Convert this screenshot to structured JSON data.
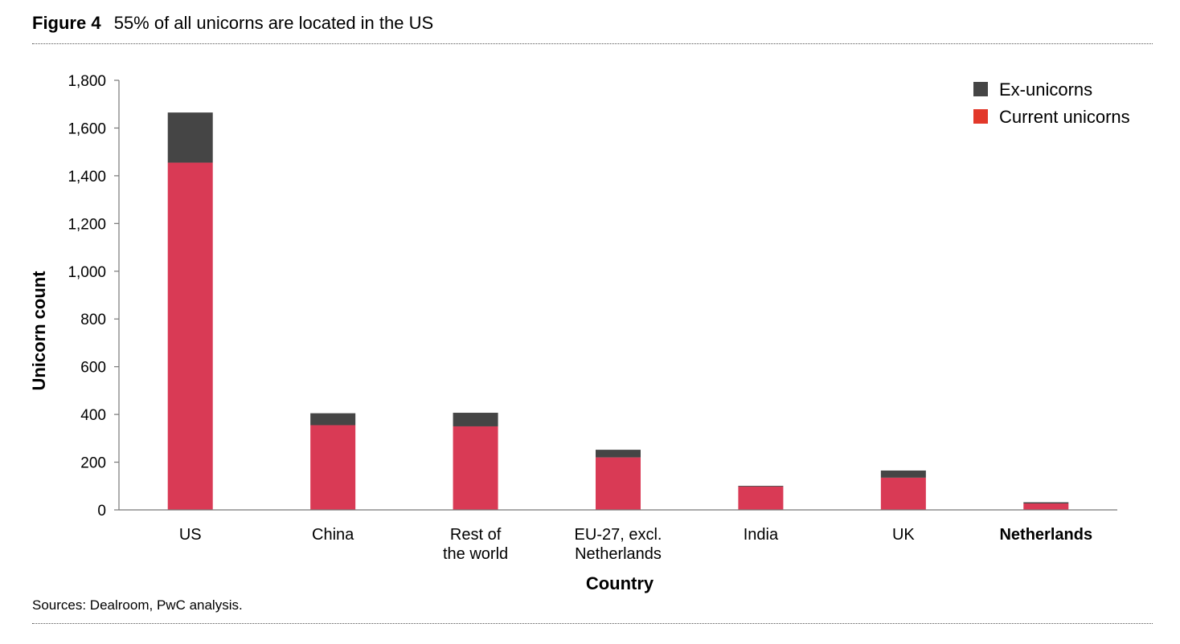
{
  "figure": {
    "label": "Figure 4",
    "title": "55% of all unicorns are located in the US",
    "sources": "Sources: Dealroom, PwC analysis."
  },
  "chart_data": {
    "type": "bar",
    "stacked": true,
    "categories": [
      [
        "US"
      ],
      [
        "China"
      ],
      [
        "Rest of",
        "the world"
      ],
      [
        "EU-27, excl.",
        "Netherlands"
      ],
      [
        "India"
      ],
      [
        "UK"
      ],
      [
        "Netherlands"
      ]
    ],
    "bold_category_index": 6,
    "series": [
      {
        "name": "Current unicorns",
        "color": "#d93a55",
        "legend_color": "#e2382a",
        "values": [
          1455,
          355,
          350,
          220,
          98,
          135,
          27
        ]
      },
      {
        "name": "Ex-unicorns",
        "color": "#454545",
        "legend_color": "#454545",
        "values": [
          210,
          50,
          57,
          32,
          3,
          30,
          5
        ]
      }
    ],
    "xlabel": "Country",
    "ylabel": "Unicorn count",
    "ylim": [
      0,
      1800
    ],
    "yticks": [
      0,
      200,
      400,
      600,
      800,
      1000,
      1200,
      1400,
      1600,
      1800
    ],
    "ytick_labels": [
      "0",
      "200",
      "400",
      "600",
      "800",
      "1,000",
      "1,200",
      "1,400",
      "1,600",
      "1,800"
    ],
    "grid": false,
    "legend": {
      "position": "top-right",
      "order": [
        "Ex-unicorns",
        "Current unicorns"
      ]
    }
  }
}
